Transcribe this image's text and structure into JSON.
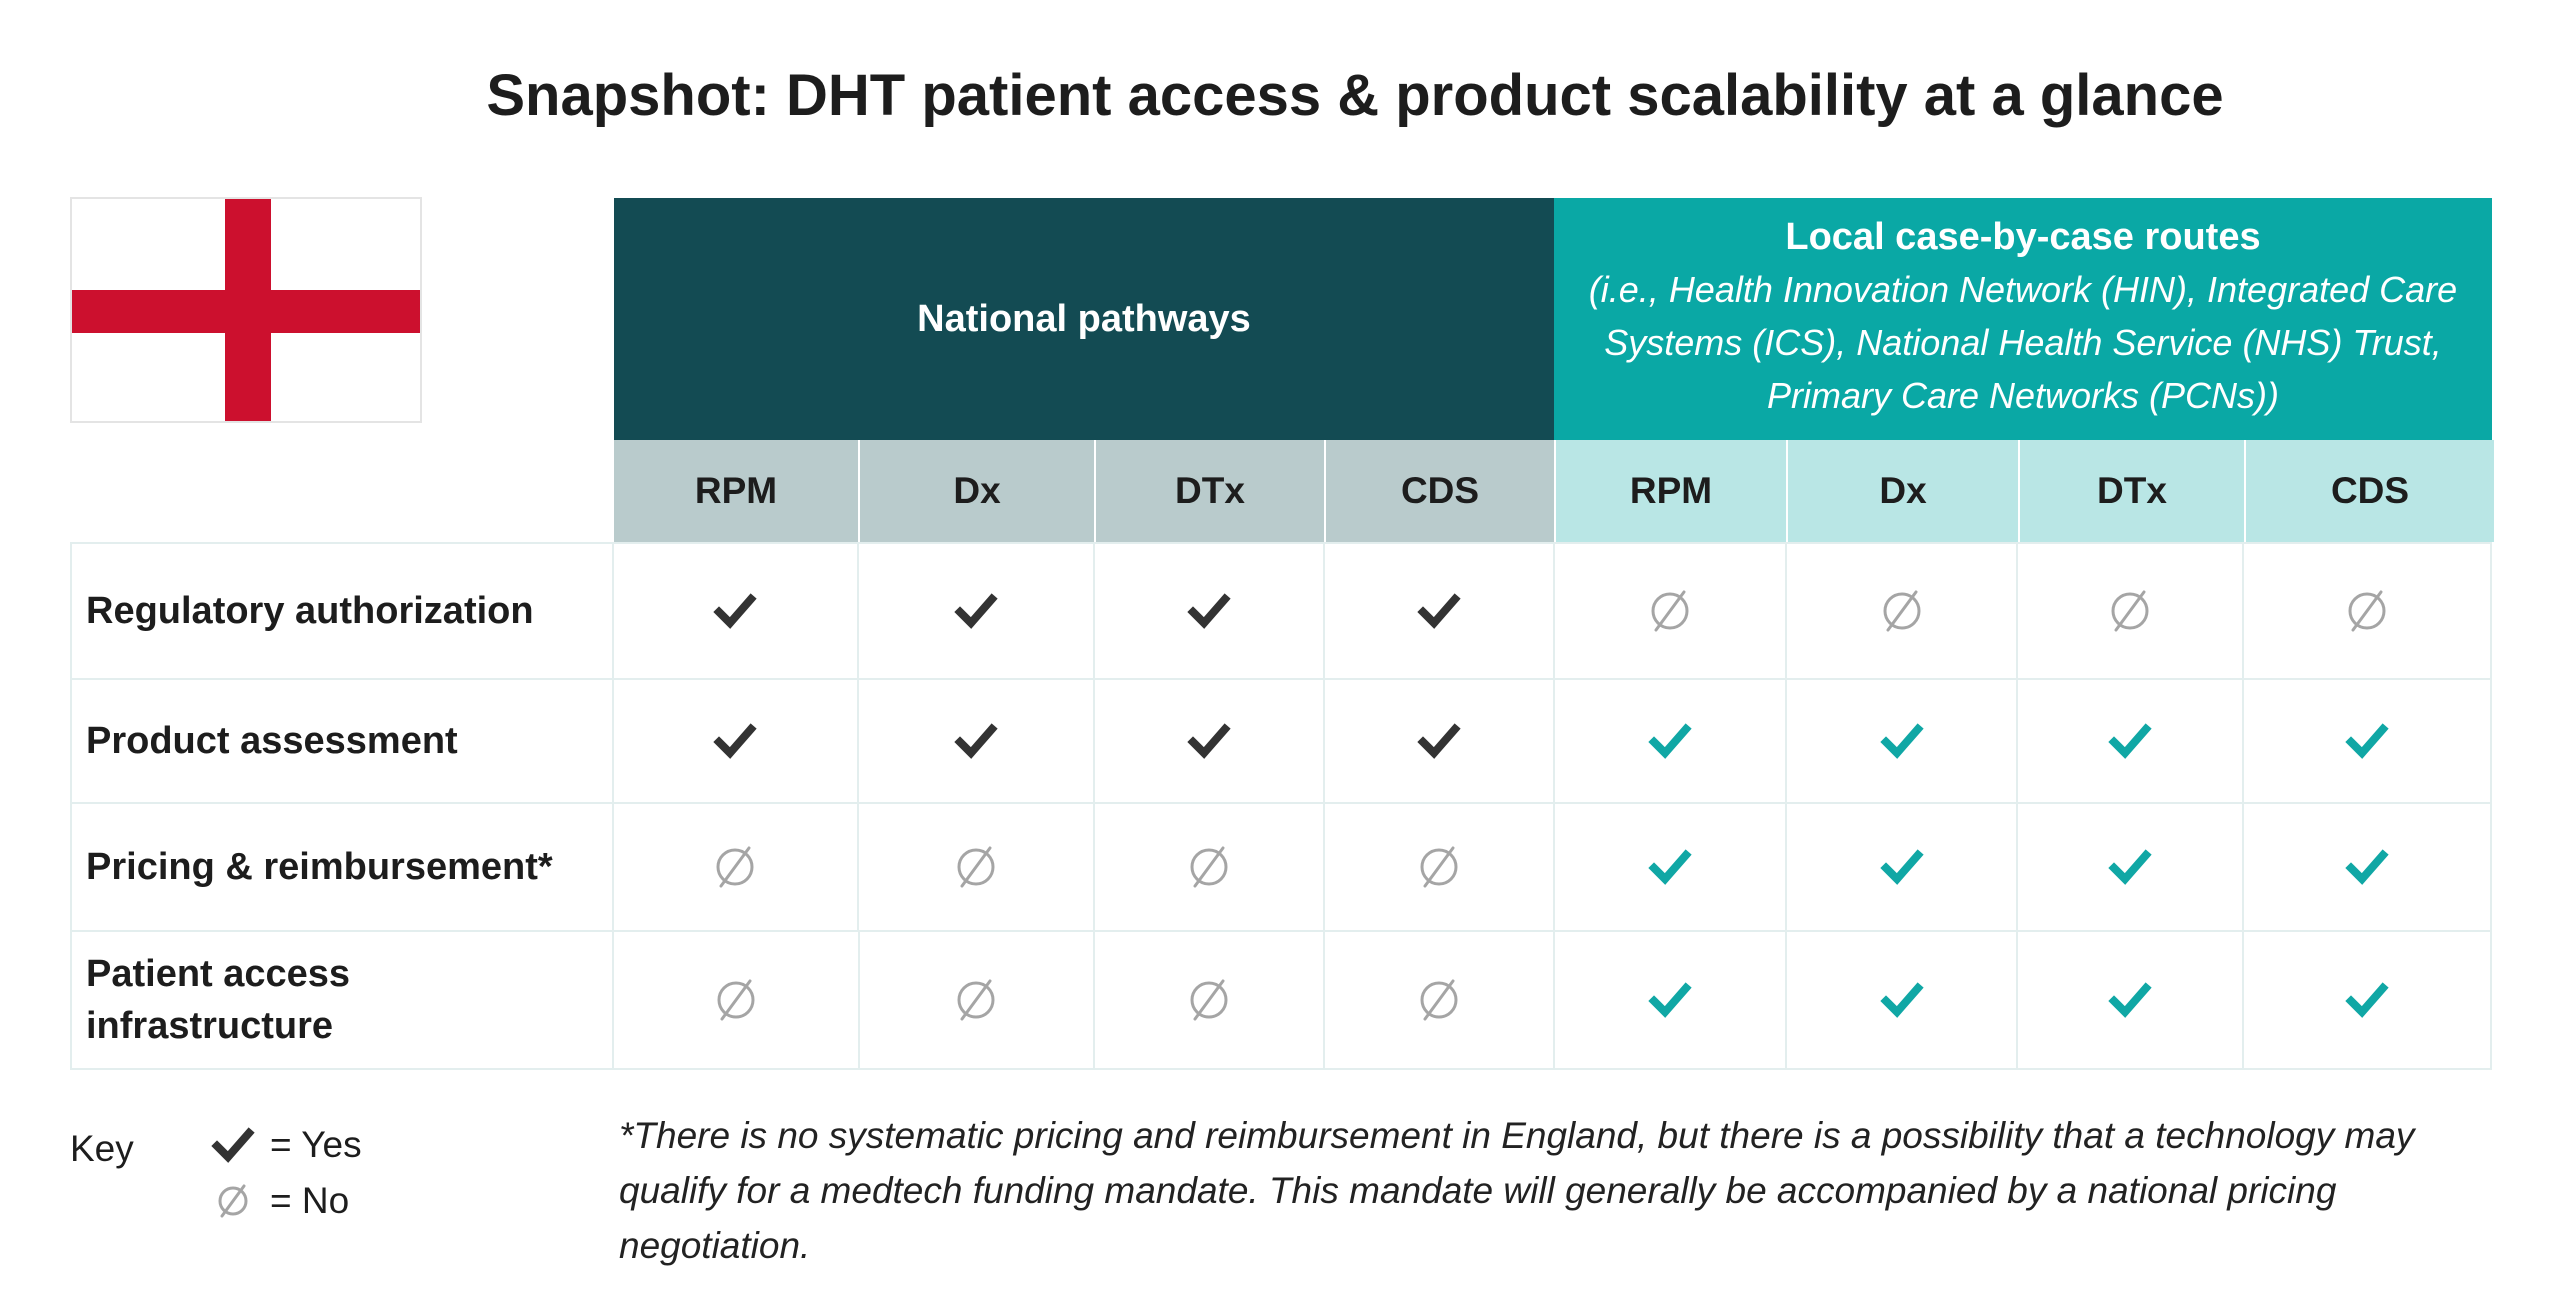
{
  "title": "Snapshot: DHT patient access & product scalability at a glance",
  "colors": {
    "national_header": "#134b53",
    "local_header": "#0aa8a5",
    "national_sub": "#b9cbcc",
    "local_sub": "#b9e6e5",
    "check_dark": "#333333",
    "check_teal": "#10a7a5",
    "none_grey": "#a5a5a5",
    "flag_red": "#cc102e"
  },
  "flag_icon": "england-flag-icon",
  "groups": {
    "national": {
      "title": "National pathways"
    },
    "local": {
      "title": "Local case-by-case routes",
      "subtitle": "(i.e., Health Innovation Network (HIN), Integrated Care Systems (ICS), National Health Service (NHS) Trust, Primary Care Networks (PCNs))"
    }
  },
  "columns": [
    "RPM",
    "Dx",
    "DTx",
    "CDS",
    "RPM",
    "Dx",
    "DTx",
    "CDS"
  ],
  "rows": [
    {
      "label": "Regulatory authorization",
      "values": [
        "yes-dark",
        "yes-dark",
        "yes-dark",
        "yes-dark",
        "no",
        "no",
        "no",
        "no"
      ]
    },
    {
      "label": "Product assessment",
      "values": [
        "yes-dark",
        "yes-dark",
        "yes-dark",
        "yes-dark",
        "yes-teal",
        "yes-teal",
        "yes-teal",
        "yes-teal"
      ]
    },
    {
      "label": "Pricing & reimbursement*",
      "values": [
        "no",
        "no",
        "no",
        "no",
        "yes-teal",
        "yes-teal",
        "yes-teal",
        "yes-teal"
      ]
    },
    {
      "label": "Patient access infrastructure",
      "values": [
        "no",
        "no",
        "no",
        "no",
        "yes-teal",
        "yes-teal",
        "yes-teal",
        "yes-teal"
      ]
    }
  ],
  "key": {
    "label": "Key",
    "yes": "= Yes",
    "no": "= No"
  },
  "footnote": "*There is no systematic pricing and reimbursement in England, but there is a possibility that a technology may qualify for a medtech funding mandate. This mandate will generally be accompanied by a national pricing negotiation."
}
